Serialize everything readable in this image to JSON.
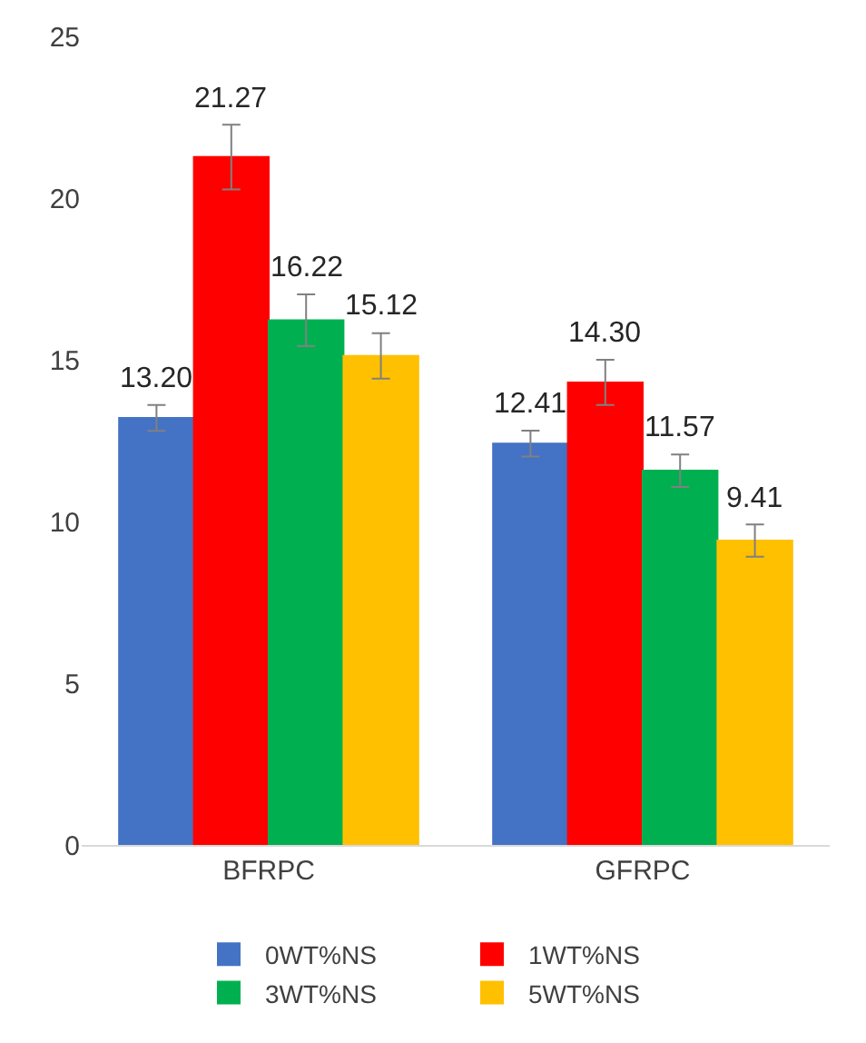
{
  "chart_data": {
    "type": "bar",
    "categories": [
      "BFRPC",
      "GFRPC"
    ],
    "series": [
      {
        "name": "0WT%NS",
        "color": "#4472c4",
        "values": [
          13.2,
          12.41
        ],
        "value_labels": [
          "13.20",
          "12.41"
        ],
        "errors": [
          0.4,
          0.4
        ]
      },
      {
        "name": "1WT%NS",
        "color": "#ff0000",
        "values": [
          21.27,
          14.3
        ],
        "value_labels": [
          "21.27",
          "14.30"
        ],
        "errors": [
          1.0,
          0.7
        ]
      },
      {
        "name": "3WT%NS",
        "color": "#00b050",
        "values": [
          16.22,
          11.57
        ],
        "value_labels": [
          "16.22",
          "11.57"
        ],
        "errors": [
          0.8,
          0.5
        ]
      },
      {
        "name": "5WT%NS",
        "color": "#ffc000",
        "values": [
          15.12,
          9.41
        ],
        "value_labels": [
          "15.12",
          "9.41"
        ],
        "errors": [
          0.7,
          0.5
        ]
      }
    ],
    "ylim": [
      0,
      25
    ],
    "yticks": [
      0,
      5,
      10,
      15,
      20,
      25
    ],
    "grid": false,
    "legend": "bottom"
  }
}
